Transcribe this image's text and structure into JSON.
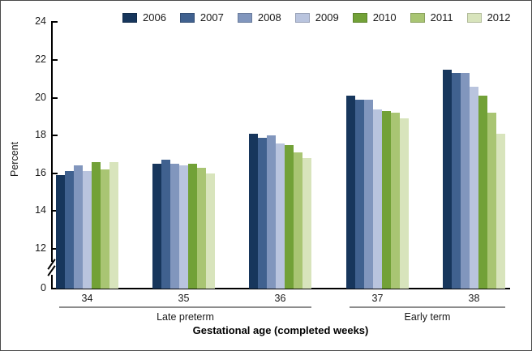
{
  "chart_data": {
    "type": "bar",
    "title": "",
    "categories": [
      "34",
      "35",
      "36",
      "37",
      "38"
    ],
    "series": [
      {
        "name": "2006",
        "color": "#17365C",
        "values": [
          15.9,
          16.5,
          18.1,
          20.1,
          21.5
        ]
      },
      {
        "name": "2007",
        "color": "#40618F",
        "values": [
          16.1,
          16.7,
          17.9,
          19.9,
          21.3
        ]
      },
      {
        "name": "2008",
        "color": "#8196BD",
        "values": [
          16.4,
          16.5,
          18.0,
          19.9,
          21.3
        ]
      },
      {
        "name": "2009",
        "color": "#B9C4DE",
        "values": [
          16.1,
          16.4,
          17.6,
          19.4,
          20.6
        ]
      },
      {
        "name": "2010",
        "color": "#72A137",
        "values": [
          16.6,
          16.5,
          17.5,
          19.3,
          20.1
        ]
      },
      {
        "name": "2011",
        "color": "#A9C573",
        "values": [
          16.2,
          16.3,
          17.1,
          19.2,
          19.2
        ]
      },
      {
        "name": "2012",
        "color": "#D8E4BC",
        "values": [
          16.6,
          16.0,
          16.8,
          18.9,
          18.1
        ]
      }
    ],
    "xlabel": "Gestational age (completed weeks)",
    "ylabel": "Percent",
    "ylim": [
      0,
      24
    ],
    "y_ticks": [
      0,
      12,
      14,
      16,
      18,
      20,
      22,
      24
    ],
    "axis_break_between": [
      0,
      12
    ],
    "grid": false,
    "legend_position": "top",
    "group_spans": [
      {
        "label": "Late preterm",
        "category_start": "34",
        "category_end": "36"
      },
      {
        "label": "Early term",
        "category_start": "37",
        "category_end": "38"
      }
    ]
  }
}
